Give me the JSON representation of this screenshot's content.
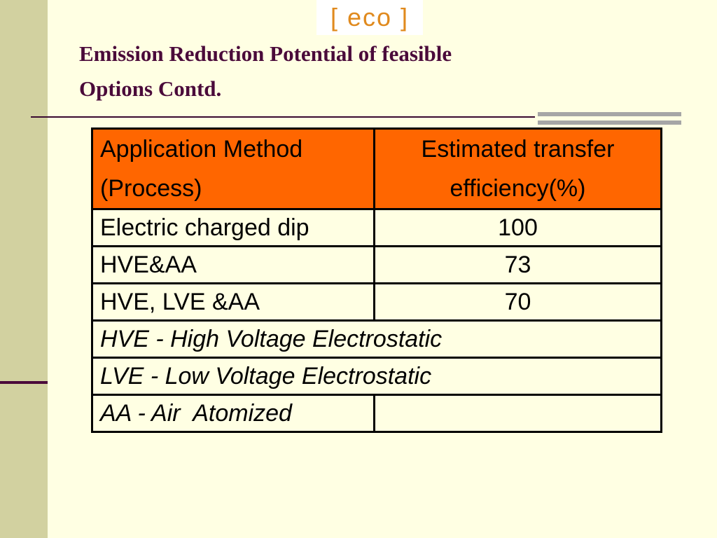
{
  "logo": "[ eco ]",
  "title_lines": [
    "Emission Reduction Potential of feasible",
    "Options Contd."
  ],
  "table": {
    "header": [
      "Application Method (Process)",
      "Estimated transfer efficiency(%)"
    ],
    "rows": [
      [
        "Electric charged dip",
        100
      ],
      [
        "HVE&AA",
        73
      ],
      [
        "HVE, LVE &AA",
        70
      ]
    ],
    "notes": [
      "HVE - High Voltage Electrostatic",
      "LVE - Low Voltage Electrostatic",
      "AA - Air  Atomized"
    ]
  }
}
